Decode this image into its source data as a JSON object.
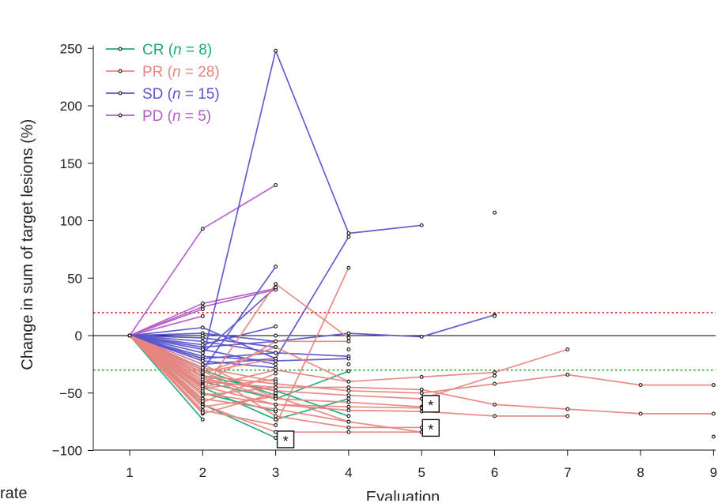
{
  "chart_data": {
    "type": "line",
    "xlabel": "Evaluation",
    "ylabel": "Change in sum of target lesions (%)",
    "xlim": [
      0.5,
      9
    ],
    "ylim": [
      -100,
      260
    ],
    "xticks": [
      1,
      2,
      3,
      4,
      5,
      6,
      7,
      8,
      9
    ],
    "yticks": [
      -100,
      -50,
      0,
      50,
      100,
      150,
      200,
      250
    ],
    "reference_lines": [
      {
        "y": 20,
        "color": "#d62728",
        "style": "dotted"
      },
      {
        "y": -30,
        "color": "#2ca02c",
        "style": "dotted"
      },
      {
        "y": 0,
        "color": "#000000",
        "style": "solid"
      }
    ],
    "legend": [
      {
        "group": "CR",
        "n_label": "n",
        "n_value": "8",
        "color": "#1fa77b"
      },
      {
        "group": "PR",
        "n_label": "n",
        "n_value": "28",
        "color": "#e8857f"
      },
      {
        "group": "SD",
        "n_label": "n",
        "n_value": "15",
        "color": "#5a55cc"
      },
      {
        "group": "PD",
        "n_label": "n",
        "n_value": "5",
        "color": "#b55cc8"
      }
    ],
    "series": [
      {
        "group": "PD",
        "x": [
          1,
          2,
          3
        ],
        "y": [
          0,
          93,
          131
        ]
      },
      {
        "group": "PD",
        "x": [
          1,
          2,
          3
        ],
        "y": [
          0,
          28,
          41
        ]
      },
      {
        "group": "PD",
        "x": [
          1,
          2,
          3
        ],
        "y": [
          0,
          25,
          40
        ]
      },
      {
        "group": "PD",
        "x": [
          1,
          2
        ],
        "y": [
          0,
          23
        ]
      },
      {
        "group": "PD",
        "x": [
          1,
          2
        ],
        "y": [
          0,
          17
        ]
      },
      {
        "group": "SD",
        "x": [
          1,
          2,
          3,
          4,
          5
        ],
        "y": [
          0,
          -20,
          248,
          89,
          96
        ]
      },
      {
        "group": "SD",
        "x": [
          1,
          2,
          3,
          4
        ],
        "y": [
          0,
          -25,
          -20,
          86
        ]
      },
      {
        "group": "SD",
        "x": [
          1,
          2,
          3
        ],
        "y": [
          0,
          -30,
          60
        ]
      },
      {
        "group": "SD",
        "x": [
          1,
          2,
          3
        ],
        "y": [
          0,
          -15,
          42
        ]
      },
      {
        "group": "SD",
        "x": [
          1,
          2,
          3,
          4,
          5,
          6
        ],
        "y": [
          0,
          -10,
          -5,
          2,
          -1,
          18
        ]
      },
      {
        "group": "SD",
        "x": [
          1,
          2,
          3
        ],
        "y": [
          0,
          7,
          -20
        ]
      },
      {
        "group": "SD",
        "x": [
          1,
          2,
          3
        ],
        "y": [
          0,
          2,
          -5
        ]
      },
      {
        "group": "SD",
        "x": [
          1,
          2,
          3
        ],
        "y": [
          0,
          -2,
          -10
        ]
      },
      {
        "group": "SD",
        "x": [
          1,
          2,
          3,
          4
        ],
        "y": [
          0,
          -5,
          -15,
          -18
        ]
      },
      {
        "group": "SD",
        "x": [
          1,
          2,
          3
        ],
        "y": [
          0,
          -8,
          8
        ]
      },
      {
        "group": "SD",
        "x": [
          1,
          2,
          3
        ],
        "y": [
          0,
          -12,
          -25
        ]
      },
      {
        "group": "SD",
        "x": [
          1,
          2,
          3,
          4
        ],
        "y": [
          0,
          -18,
          -22,
          -20
        ]
      },
      {
        "group": "SD",
        "x": [
          1,
          2,
          3
        ],
        "y": [
          0,
          -20,
          -15
        ]
      },
      {
        "group": "SD",
        "x": [
          1,
          2,
          3
        ],
        "y": [
          0,
          -22,
          -28
        ]
      },
      {
        "group": "SD",
        "x": [
          1,
          2
        ],
        "y": [
          0,
          -28
        ]
      },
      {
        "group": "CR",
        "x": [
          1,
          2,
          3
        ],
        "y": [
          0,
          -60,
          -89
        ]
      },
      {
        "group": "CR",
        "x": [
          1,
          2
        ],
        "y": [
          0,
          -73
        ]
      },
      {
        "group": "CR",
        "x": [
          1,
          2,
          3,
          4
        ],
        "y": [
          0,
          -45,
          -73,
          -55
        ]
      },
      {
        "group": "CR",
        "x": [
          1,
          2,
          3,
          4
        ],
        "y": [
          0,
          -40,
          -55,
          -31
        ]
      },
      {
        "group": "CR",
        "x": [
          1,
          2,
          3
        ],
        "y": [
          0,
          -50,
          -66
        ]
      },
      {
        "group": "CR",
        "x": [
          1,
          2,
          3,
          4
        ],
        "y": [
          0,
          -35,
          -48,
          -70
        ]
      },
      {
        "group": "CR",
        "x": [
          1,
          2,
          3
        ],
        "y": [
          0,
          -30,
          -52
        ]
      },
      {
        "group": "CR",
        "x": [
          1,
          2
        ],
        "y": [
          0,
          -55
        ]
      },
      {
        "group": "PR",
        "x": [
          1,
          2,
          3,
          4,
          5,
          6,
          7,
          8,
          9
        ],
        "y": [
          0,
          -40,
          -45,
          -45,
          -47,
          -60,
          -64,
          -68,
          -68
        ]
      },
      {
        "group": "PR",
        "x": [
          1,
          2,
          3,
          4,
          5,
          6,
          7
        ],
        "y": [
          0,
          -50,
          -60,
          -65,
          -66,
          -70,
          -70
        ]
      },
      {
        "group": "PR",
        "x": [
          1,
          2,
          3,
          4,
          5,
          6,
          7,
          8,
          9
        ],
        "y": [
          0,
          -35,
          -42,
          -48,
          -50,
          -42,
          -34,
          -43,
          -43
        ]
      },
      {
        "group": "PR",
        "x": [
          1,
          2,
          3,
          4,
          5,
          6,
          7
        ],
        "y": [
          0,
          -45,
          -30,
          -40,
          -36,
          -32,
          -12
        ]
      },
      {
        "group": "PR",
        "x": [
          1,
          2,
          3,
          4,
          5
        ],
        "y": [
          0,
          -55,
          -64,
          -75,
          -84
        ]
      },
      {
        "group": "PR",
        "x": [
          1,
          2,
          3,
          4,
          5
        ],
        "y": [
          0,
          -60,
          -84,
          -84,
          -84
        ]
      },
      {
        "group": "PR",
        "x": [
          1,
          2,
          3,
          4,
          5,
          6
        ],
        "y": [
          0,
          -38,
          -48,
          -52,
          -55,
          -35
        ]
      },
      {
        "group": "PR",
        "x": [
          1,
          2,
          3,
          4,
          5
        ],
        "y": [
          0,
          -30,
          -70,
          -80,
          -80
        ]
      },
      {
        "group": "PR",
        "x": [
          1,
          2,
          3,
          4
        ],
        "y": [
          0,
          -65,
          -78,
          59
        ]
      },
      {
        "group": "PR",
        "x": [
          1,
          2,
          3,
          4
        ],
        "y": [
          0,
          -48,
          45,
          -2
        ]
      },
      {
        "group": "PR",
        "x": [
          1,
          2,
          3,
          4
        ],
        "y": [
          0,
          -42,
          -5,
          -5
        ]
      },
      {
        "group": "PR",
        "x": [
          1,
          2,
          3,
          4
        ],
        "y": [
          0,
          -62,
          -53,
          -75
        ]
      },
      {
        "group": "PR",
        "x": [
          1,
          2,
          3,
          4
        ],
        "y": [
          0,
          -33,
          -10,
          -40
        ]
      },
      {
        "group": "PR",
        "x": [
          1,
          2,
          3
        ],
        "y": [
          0,
          -68,
          -50
        ]
      },
      {
        "group": "PR",
        "x": [
          1,
          2,
          3
        ],
        "y": [
          0,
          -52,
          -45
        ]
      },
      {
        "group": "PR",
        "x": [
          1,
          2,
          3
        ],
        "y": [
          0,
          -46,
          -38
        ]
      },
      {
        "group": "PR",
        "x": [
          1,
          2,
          3
        ],
        "y": [
          0,
          -58,
          -33
        ]
      },
      {
        "group": "PR",
        "x": [
          1,
          2
        ],
        "y": [
          0,
          -43
        ]
      },
      {
        "group": "PR",
        "x": [
          1,
          2,
          3,
          4,
          5
        ],
        "y": [
          0,
          -36,
          -55,
          -58,
          -62
        ]
      },
      {
        "group": "PR",
        "x": [
          1,
          2,
          3,
          4,
          5
        ],
        "y": [
          0,
          -44,
          -60,
          -62,
          -63
        ]
      },
      {
        "group": "PR",
        "x": [
          1,
          2,
          3
        ],
        "y": [
          0,
          -25,
          -55
        ]
      },
      {
        "group": "PR",
        "x": [
          1,
          2,
          3
        ],
        "y": [
          0,
          -32,
          -20
        ]
      },
      {
        "group": "PR",
        "x": [
          1,
          2
        ],
        "y": [
          0,
          -67
        ]
      },
      {
        "group": "PR",
        "x": [
          1,
          2,
          3
        ],
        "y": [
          0,
          -28,
          -40
        ]
      },
      {
        "group": "PR",
        "x": [
          1,
          2
        ],
        "y": [
          0,
          -57
        ]
      }
    ],
    "extra_points": [
      {
        "x": 6,
        "y": 107
      },
      {
        "x": 9,
        "y": -88
      },
      {
        "x": 6,
        "y": 17
      },
      {
        "x": 4,
        "y": -12
      },
      {
        "x": 4,
        "y": -25
      },
      {
        "x": 3,
        "y": 0
      },
      {
        "x": 3,
        "y": -60
      },
      {
        "x": 2,
        "y": 0
      }
    ],
    "annotations": [
      {
        "text": "*",
        "x": 3.13,
        "y": -90
      },
      {
        "text": "*",
        "x": 5.12,
        "y": -59
      },
      {
        "text": "*",
        "x": 5.12,
        "y": -80
      }
    ]
  },
  "fragments": {
    "left_bottom_text": "rate"
  }
}
